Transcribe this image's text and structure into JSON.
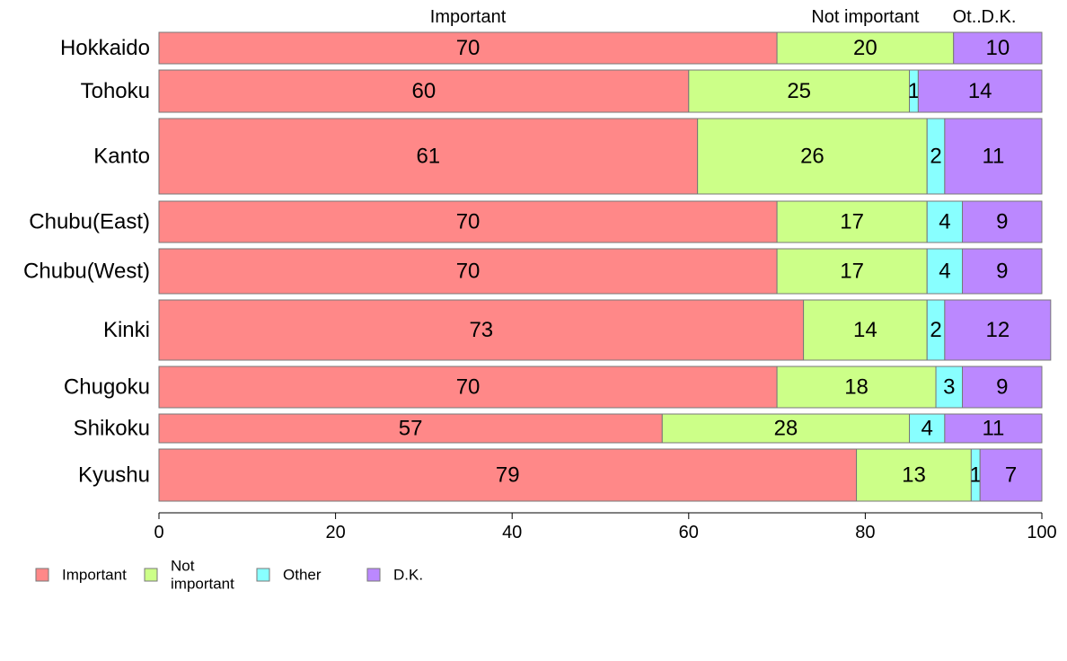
{
  "chart_data": {
    "type": "bar",
    "orientation": "horizontal",
    "stacked": true,
    "categories": [
      "Hokkaido",
      "Tohoku",
      "Kanto",
      "Chubu(East)",
      "Chubu(West)",
      "Kinki",
      "Chugoku",
      "Shikoku",
      "Kyushu"
    ],
    "series": [
      {
        "name": "Important",
        "color": "#ff8888",
        "values": [
          70,
          60,
          61,
          70,
          70,
          73,
          70,
          57,
          79
        ]
      },
      {
        "name": "Not important",
        "color": "#ccff88",
        "values": [
          20,
          25,
          26,
          17,
          17,
          14,
          18,
          28,
          13
        ]
      },
      {
        "name": "Other",
        "color": "#88ffff",
        "values": [
          0,
          1,
          2,
          4,
          4,
          2,
          3,
          4,
          1
        ]
      },
      {
        "name": "D.K.",
        "color": "#bb88ff",
        "values": [
          10,
          14,
          11,
          9,
          9,
          12,
          9,
          11,
          7
        ]
      }
    ],
    "series_value_labels": [
      [
        "70",
        "60",
        "61",
        "70",
        "70",
        "73",
        "70",
        "57",
        "79"
      ],
      [
        "20",
        "25",
        "26",
        "17",
        "17",
        "14",
        "18",
        "28",
        "13"
      ],
      [
        "",
        "1",
        "2",
        "4",
        "4",
        "2",
        "3",
        "4",
        "1"
      ],
      [
        "10",
        "14",
        "11",
        "9",
        "9",
        "12",
        "9",
        "11",
        "7"
      ]
    ],
    "top_labels": [
      "Important",
      "Not important",
      "Ot..",
      "D.K."
    ],
    "legend_labels": [
      [
        "Important"
      ],
      [
        "Not",
        "important"
      ],
      [
        "Other"
      ],
      [
        "D.K."
      ]
    ],
    "xlim": [
      0,
      100
    ],
    "xticks": [
      0,
      20,
      40,
      60,
      80,
      100
    ],
    "xtick_labels": [
      "0",
      "20",
      "40",
      "60",
      "80",
      "100"
    ],
    "grid": false,
    "legend_position": "bottom-left"
  }
}
